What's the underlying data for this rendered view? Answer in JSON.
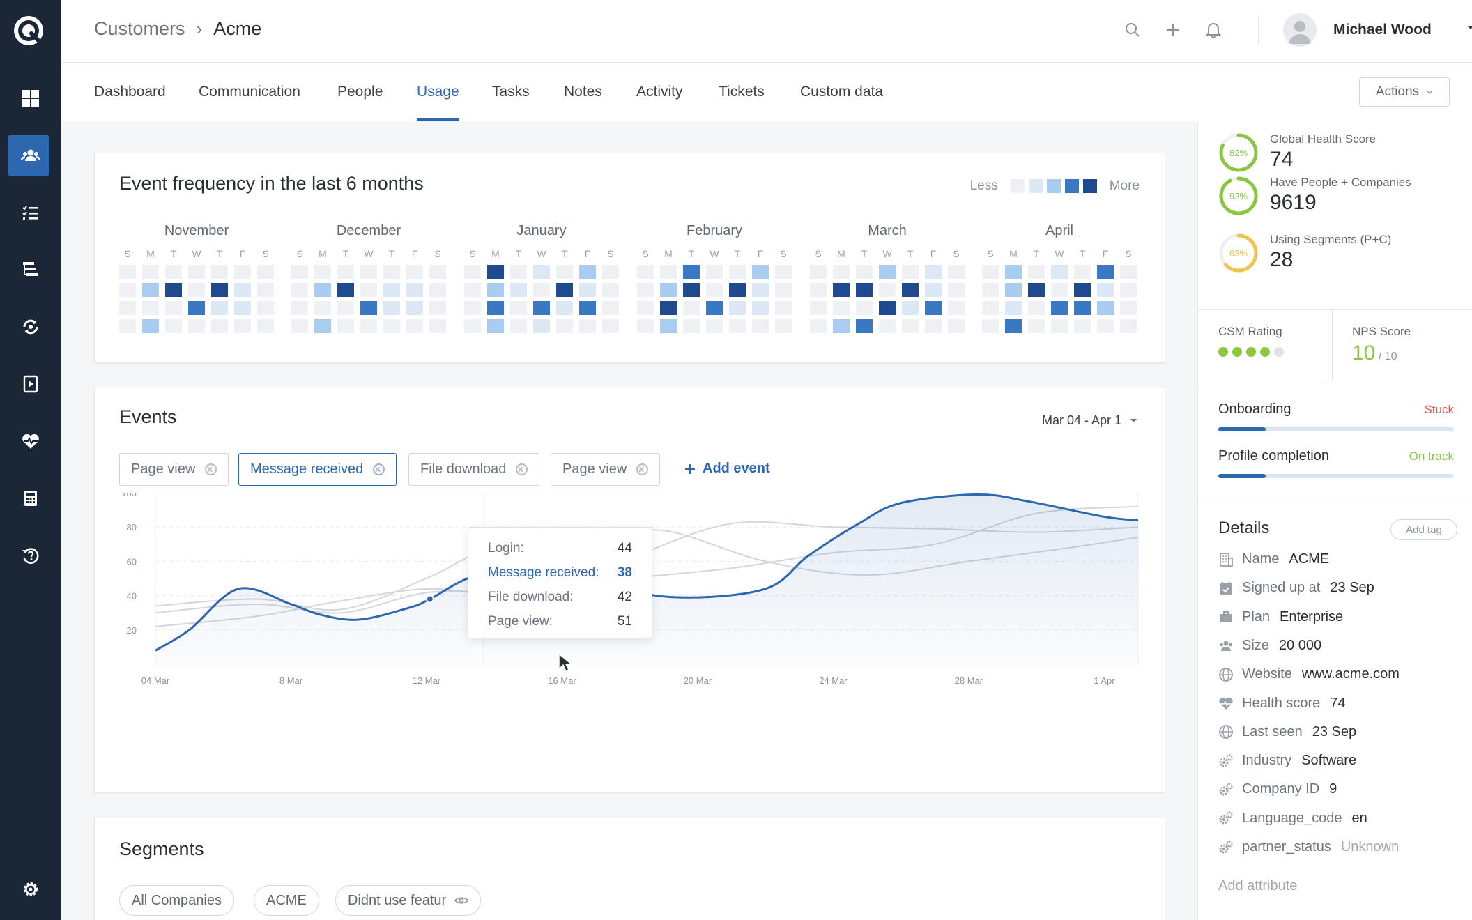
{
  "header": {
    "breadcrumb": [
      "Customers",
      "Acme"
    ],
    "user_name": "Michael Wood"
  },
  "tabs": [
    {
      "label": "Dashboard"
    },
    {
      "label": "Communication"
    },
    {
      "label": "People"
    },
    {
      "label": "Usage",
      "active": true
    },
    {
      "label": "Tasks"
    },
    {
      "label": "Notes"
    },
    {
      "label": "Activity"
    },
    {
      "label": "Tickets"
    },
    {
      "label": "Custom data"
    }
  ],
  "actions_label": "Actions",
  "heatmap": {
    "title": "Event frequency in the last 6 months",
    "legend_less": "Less",
    "legend_more": "More",
    "levels": [
      "#eef0f3",
      "#dce8f6",
      "#a9cdf0",
      "#3a78c4",
      "#1f4a8f"
    ],
    "day_letters": [
      "S",
      "M",
      "T",
      "W",
      "T",
      "F",
      "S"
    ],
    "months": [
      {
        "name": "November",
        "rows": [
          [
            0,
            0,
            0,
            0,
            0,
            0,
            0
          ],
          [
            0,
            2,
            4,
            0,
            4,
            1,
            0
          ],
          [
            0,
            0,
            0,
            3,
            1,
            1,
            0
          ],
          [
            0,
            2,
            0,
            0,
            0,
            0,
            0
          ]
        ]
      },
      {
        "name": "December",
        "rows": [
          [
            0,
            0,
            0,
            0,
            0,
            0,
            0
          ],
          [
            0,
            2,
            4,
            0,
            1,
            1,
            0
          ],
          [
            0,
            0,
            0,
            3,
            1,
            1,
            0
          ],
          [
            0,
            2,
            0,
            0,
            0,
            0,
            0
          ]
        ]
      },
      {
        "name": "January",
        "rows": [
          [
            0,
            4,
            0,
            1,
            0,
            2,
            0
          ],
          [
            0,
            2,
            1,
            0,
            4,
            1,
            0
          ],
          [
            0,
            3,
            0,
            3,
            1,
            3,
            0
          ],
          [
            0,
            2,
            0,
            1,
            0,
            0,
            0
          ]
        ]
      },
      {
        "name": "February",
        "rows": [
          [
            0,
            0,
            3,
            0,
            0,
            2,
            0
          ],
          [
            0,
            2,
            4,
            0,
            4,
            1,
            0
          ],
          [
            0,
            4,
            0,
            3,
            1,
            1,
            0
          ],
          [
            0,
            2,
            0,
            0,
            0,
            0,
            0
          ]
        ]
      },
      {
        "name": "March",
        "rows": [
          [
            0,
            0,
            0,
            2,
            0,
            1,
            0
          ],
          [
            0,
            4,
            4,
            0,
            4,
            1,
            0
          ],
          [
            0,
            0,
            0,
            4,
            1,
            3,
            0
          ],
          [
            0,
            2,
            3,
            0,
            0,
            0,
            0
          ]
        ]
      },
      {
        "name": "April",
        "rows": [
          [
            0,
            2,
            0,
            1,
            0,
            3,
            0
          ],
          [
            0,
            2,
            4,
            0,
            4,
            1,
            0
          ],
          [
            0,
            1,
            0,
            3,
            3,
            2,
            0
          ],
          [
            0,
            3,
            0,
            0,
            0,
            0,
            0
          ]
        ]
      }
    ]
  },
  "events": {
    "title": "Events",
    "date_range": "Mar 04 - Apr 1",
    "filters": [
      {
        "label": "Page view",
        "active": false
      },
      {
        "label": "Message received",
        "active": true
      },
      {
        "label": "File download",
        "active": false
      },
      {
        "label": "Page view",
        "active": false
      }
    ],
    "add_event_label": "Add event",
    "tooltip": [
      {
        "label": "Login:",
        "value": "44",
        "highlight": false
      },
      {
        "label": "Message received:",
        "value": "38",
        "highlight": true
      },
      {
        "label": "File download:",
        "value": "42",
        "highlight": false
      },
      {
        "label": "Page view:",
        "value": "51",
        "highlight": false
      }
    ]
  },
  "chart_data": {
    "type": "line",
    "x_ticks": [
      "04 Mar",
      "8 Mar",
      "12 Mar",
      "16 Mar",
      "20 Mar",
      "24 Mar",
      "28 Mar",
      "1 Apr"
    ],
    "y_ticks": [
      20,
      40,
      60,
      80,
      100
    ],
    "ylim": [
      0,
      100
    ],
    "grid": true,
    "series": [
      {
        "name": "Message received",
        "highlight": true,
        "color": "#2c67b0",
        "x": [
          0,
          2,
          4.9,
          8,
          9.7,
          12,
          15,
          16.2,
          19,
          23.5,
          26.2,
          30.8,
          36,
          38.5,
          41.5,
          44,
          48.5,
          51.5,
          56,
          58
        ],
        "y": [
          8,
          20,
          44,
          35,
          29,
          26,
          33,
          38,
          52,
          58,
          47,
          39,
          44,
          63,
          82,
          94,
          99,
          95,
          86,
          84
        ]
      },
      {
        "name": "Login",
        "highlight": false,
        "color": "#d3d6da",
        "x": [
          0,
          6,
          11,
          16.2,
          22,
          28,
          34,
          40,
          46,
          52,
          58
        ],
        "y": [
          22,
          28,
          37,
          44,
          40,
          62,
          82,
          80,
          79,
          77,
          80
        ]
      },
      {
        "name": "File download",
        "highlight": false,
        "color": "#d3d6da",
        "x": [
          0,
          6,
          11,
          16.2,
          22,
          28,
          34,
          40,
          46,
          52,
          58
        ],
        "y": [
          30,
          35,
          30,
          42,
          42,
          50,
          56,
          65,
          70,
          88,
          92
        ]
      },
      {
        "name": "Page view",
        "highlight": false,
        "color": "#d3d6da",
        "x": [
          0,
          6,
          11,
          16.2,
          20,
          26,
          30,
          36,
          42,
          48,
          54,
          58
        ],
        "y": [
          34,
          38,
          32,
          51,
          68,
          72,
          78,
          60,
          52,
          60,
          68,
          74
        ]
      }
    ]
  },
  "segments": {
    "title": "Segments",
    "chips": [
      "All Companies",
      "ACME",
      "Didnt use featur"
    ]
  },
  "sidebar_right": {
    "scores": [
      {
        "percent": "82%",
        "ratio": 0.82,
        "color": "#8cc63f",
        "label": "Global Health Score",
        "value": "74"
      },
      {
        "percent": "92%",
        "ratio": 0.92,
        "color": "#8cc63f",
        "label": "Have People + Companies",
        "value": "9619"
      },
      {
        "percent": "63%",
        "ratio": 0.63,
        "color": "#f2c14e",
        "label": "Using Segments (P+C)",
        "value": "28"
      }
    ],
    "csm_label": "CSM Rating",
    "csm_rating": 4,
    "csm_max": 5,
    "nps_label": "NPS Score",
    "nps_value": "10",
    "nps_suffix": "/ 10",
    "progress": [
      {
        "name": "Onboarding",
        "status": "Stuck",
        "status_color": "#e05a4f",
        "ratio": 0.2
      },
      {
        "name": "Profile completion",
        "status": "On track",
        "status_color": "#8cc63f",
        "ratio": 0.2
      }
    ],
    "details_title": "Details",
    "add_tag_label": "Add tag",
    "details": [
      {
        "icon": "building-icon",
        "key": "Name",
        "value": "ACME"
      },
      {
        "icon": "calendar-icon",
        "key": "Signed up at",
        "value": "23 Sep"
      },
      {
        "icon": "briefcase-icon",
        "key": "Plan",
        "value": "Enterprise"
      },
      {
        "icon": "people-icon",
        "key": "Size",
        "value": "20 000"
      },
      {
        "icon": "globe-icon",
        "key": "Website",
        "value": "www.acme.com"
      },
      {
        "icon": "heart-icon",
        "key": "Health score",
        "value": "74"
      },
      {
        "icon": "globe-icon",
        "key": "Last seen",
        "value": "23 Sep"
      },
      {
        "icon": "gears-icon",
        "key": "Industry",
        "value": "Software"
      },
      {
        "icon": "gears-icon",
        "key": "Company ID",
        "value": "9"
      },
      {
        "icon": "gears-icon",
        "key": "Language_code",
        "value": "en"
      },
      {
        "icon": "gears-icon",
        "key": "partner_status",
        "value": "Unknown",
        "muted": true
      }
    ],
    "add_attribute_label": "Add attribute"
  },
  "colors": {
    "accent": "#2c67b0",
    "rail": "#1b2737"
  }
}
